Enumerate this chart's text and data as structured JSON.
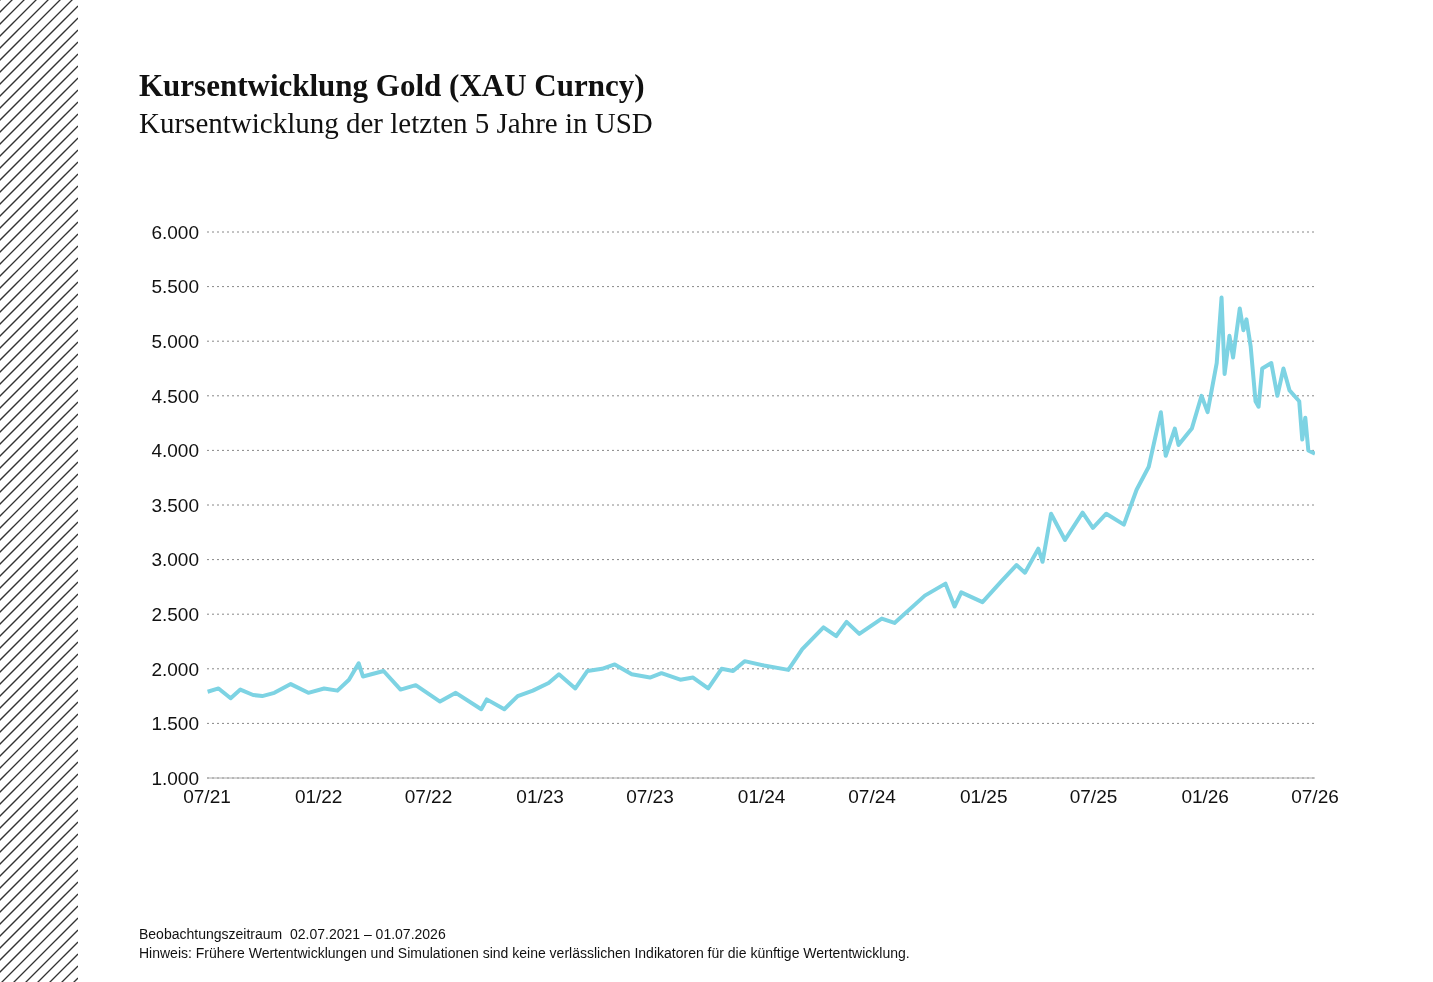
{
  "chart_data": {
    "type": "line",
    "title": "Kursentwicklung Gold (XAU Curncy)",
    "subtitle": "Kursentwicklung der letzten 5 Jahre in USD",
    "annotations": [
      "Beobachtungszeitraum  02.07.2021 – 01.07.2026",
      "Hinweis: Frühere Wertentwicklungen und Simulationen sind keine verlässlichen Indikatoren für die künftige Wertentwicklung."
    ],
    "x": [
      "2021-07-02",
      "2021-07-20",
      "2021-08-09",
      "2021-08-25",
      "2021-09-15",
      "2021-09-30",
      "2021-10-20",
      "2021-11-16",
      "2021-12-15",
      "2022-01-10",
      "2022-02-01",
      "2022-02-20",
      "2022-03-08",
      "2022-03-15",
      "2022-04-18",
      "2022-05-16",
      "2022-06-10",
      "2022-07-20",
      "2022-08-15",
      "2022-09-26",
      "2022-10-05",
      "2022-11-03",
      "2022-11-25",
      "2022-12-20",
      "2023-01-15",
      "2023-02-01",
      "2023-02-28",
      "2023-03-20",
      "2023-04-13",
      "2023-05-04",
      "2023-06-01",
      "2023-07-01",
      "2023-07-20",
      "2023-08-20",
      "2023-09-10",
      "2023-10-05",
      "2023-10-27",
      "2023-11-15",
      "2023-12-04",
      "2024-01-05",
      "2024-02-14",
      "2024-03-08",
      "2024-04-12",
      "2024-05-03",
      "2024-05-20",
      "2024-06-10",
      "2024-07-17",
      "2024-08-07",
      "2024-09-26",
      "2024-10-30",
      "2024-11-14",
      "2024-11-25",
      "2024-12-30",
      "2025-01-30",
      "2025-02-24",
      "2025-03-10",
      "2025-04-01",
      "2025-04-08",
      "2025-04-22",
      "2025-05-15",
      "2025-06-13",
      "2025-06-30",
      "2025-07-22",
      "2025-08-20",
      "2025-09-10",
      "2025-09-30",
      "2025-10-20",
      "2025-10-28",
      "2025-11-12",
      "2025-11-18",
      "2025-12-10",
      "2025-12-26",
      "2026-01-05",
      "2026-01-20",
      "2026-01-28",
      "2026-02-02",
      "2026-02-10",
      "2026-02-16",
      "2026-02-27",
      "2026-03-05",
      "2026-03-10",
      "2026-03-17",
      "2026-03-25",
      "2026-03-30",
      "2026-04-05",
      "2026-04-20",
      "2026-04-30",
      "2026-05-10",
      "2026-05-20",
      "2026-06-05",
      "2026-06-10",
      "2026-06-15",
      "2026-06-20",
      "2026-07-01"
    ],
    "series": [
      {
        "color": "#7dd3e3",
        "values": [
          1790,
          1820,
          1730,
          1810,
          1760,
          1750,
          1780,
          1860,
          1780,
          1820,
          1800,
          1900,
          2050,
          1930,
          1980,
          1810,
          1850,
          1700,
          1780,
          1630,
          1720,
          1630,
          1750,
          1800,
          1870,
          1950,
          1820,
          1980,
          2000,
          2040,
          1950,
          1920,
          1960,
          1900,
          1920,
          1820,
          2000,
          1980,
          2070,
          2030,
          1990,
          2180,
          2380,
          2300,
          2430,
          2320,
          2460,
          2420,
          2670,
          2780,
          2570,
          2700,
          2610,
          2800,
          2950,
          2880,
          3100,
          2980,
          3420,
          3180,
          3430,
          3290,
          3420,
          3320,
          3640,
          3850,
          4350,
          3950,
          4200,
          4050,
          4200,
          4500,
          4350,
          4800,
          5400,
          4700,
          5050,
          4850,
          5300,
          5100,
          5200,
          4950,
          4450,
          4400,
          4750,
          4800,
          4500,
          4750,
          4550,
          4450,
          4100,
          4300,
          4000,
          3970
        ]
      }
    ],
    "xlim": [
      "2021-07-01",
      "2026-07-01"
    ],
    "xticks": [
      {
        "value": "2021-07-01",
        "label": "07/21"
      },
      {
        "value": "2022-01-01",
        "label": "01/22"
      },
      {
        "value": "2022-07-01",
        "label": "07/22"
      },
      {
        "value": "2023-01-01",
        "label": "01/23"
      },
      {
        "value": "2023-07-01",
        "label": "07/23"
      },
      {
        "value": "2024-01-01",
        "label": "01/24"
      },
      {
        "value": "2024-07-01",
        "label": "07/24"
      },
      {
        "value": "2025-01-01",
        "label": "01/25"
      },
      {
        "value": "2025-07-01",
        "label": "07/25"
      },
      {
        "value": "2026-01-01",
        "label": "01/26"
      },
      {
        "value": "2026-07-01",
        "label": "07/26"
      }
    ],
    "ylim": [
      1000,
      6000
    ],
    "yticks": [
      {
        "value": 1000,
        "label": "1.000"
      },
      {
        "value": 1500,
        "label": "1.500"
      },
      {
        "value": 2000,
        "label": "2.000"
      },
      {
        "value": 2500,
        "label": "2.500"
      },
      {
        "value": 3000,
        "label": "3.000"
      },
      {
        "value": 3500,
        "label": "3.500"
      },
      {
        "value": 4000,
        "label": "4.000"
      },
      {
        "value": 4500,
        "label": "4.500"
      },
      {
        "value": 5000,
        "label": "5.000"
      },
      {
        "value": 5500,
        "label": "5.500"
      },
      {
        "value": 6000,
        "label": "6.000"
      }
    ],
    "grid": "y",
    "legend": false,
    "marker": "none",
    "line_style": "solid"
  }
}
